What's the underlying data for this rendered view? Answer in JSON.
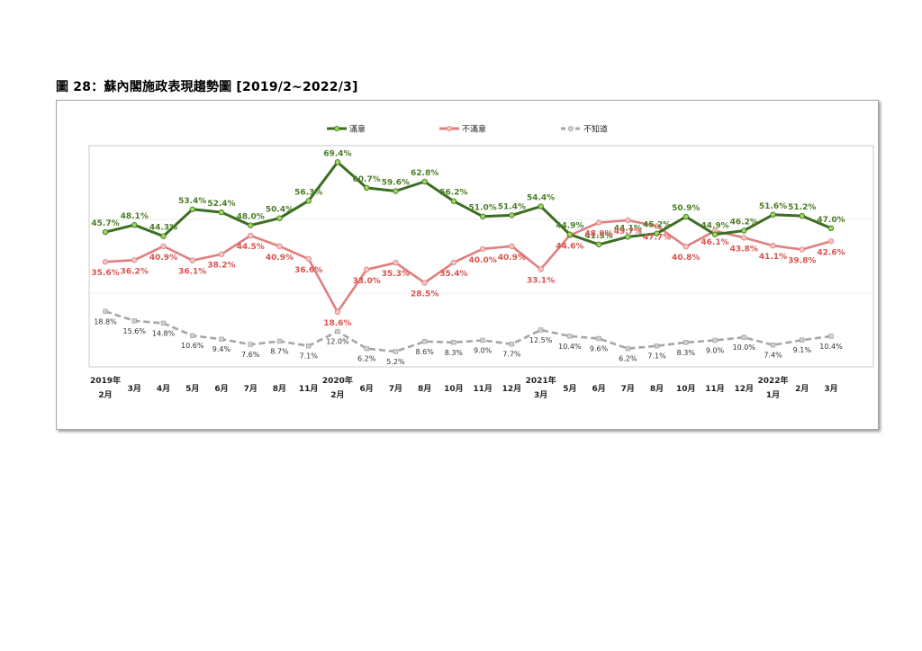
{
  "figure_title": "圖 28：蘇內閣施政表現趨勢圖  [2019/2~2022/3]",
  "chart_data": {
    "type": "line",
    "title": "圖 28：蘇內閣施政表現趨勢圖  [2019/2~2022/3]",
    "grid": false,
    "legend_position": "top",
    "categories": [
      [
        "2019年",
        "2月"
      ],
      [
        "",
        "3月"
      ],
      [
        "",
        "4月"
      ],
      [
        "",
        "5月"
      ],
      [
        "",
        "6月"
      ],
      [
        "",
        "7月"
      ],
      [
        "",
        "8月"
      ],
      [
        "",
        "11月"
      ],
      [
        "2020年",
        "2月"
      ],
      [
        "",
        "6月"
      ],
      [
        "",
        "7月"
      ],
      [
        "",
        "8月"
      ],
      [
        "",
        "10月"
      ],
      [
        "",
        "11月"
      ],
      [
        "",
        "12月"
      ],
      [
        "2021年",
        "3月"
      ],
      [
        "",
        "5月"
      ],
      [
        "",
        "6月"
      ],
      [
        "",
        "7月"
      ],
      [
        "",
        "8月"
      ],
      [
        "",
        "10月"
      ],
      [
        "",
        "11月"
      ],
      [
        "",
        "12月"
      ],
      [
        "2022年",
        "1月"
      ],
      [
        "",
        "2月"
      ],
      [
        "",
        "3月"
      ]
    ],
    "series": [
      {
        "name": "滿意",
        "color": "#3b6e22",
        "marker_color": "#9bd85a",
        "style": "solid",
        "values": [
          45.7,
          48.1,
          44.3,
          53.4,
          52.4,
          48.0,
          50.4,
          56.3,
          69.4,
          60.7,
          59.6,
          62.8,
          56.2,
          51.0,
          51.4,
          54.4,
          44.9,
          41.5,
          44.1,
          45.2,
          50.9,
          44.9,
          46.2,
          51.6,
          51.2,
          47.0
        ],
        "labels": [
          "45.7%",
          "48.1%",
          "44.3%",
          "53.4%",
          "52.4%",
          "48.0%",
          "50.4%",
          "56.3%",
          "69.4%",
          "60.7%",
          "59.6%",
          "62.8%",
          "56.2%",
          "51.0%",
          "51.4%",
          "54.4%",
          "44.9%",
          "41.5%",
          "44.1%",
          "45.2%",
          "50.9%",
          "44.9%",
          "46.2%",
          "51.6%",
          "51.2%",
          "47.0%"
        ]
      },
      {
        "name": "不滿意",
        "color": "#e07f7f",
        "marker_color": "#f4c4c4",
        "style": "solid",
        "values": [
          35.6,
          36.2,
          40.9,
          36.1,
          38.2,
          44.5,
          40.9,
          36.6,
          18.6,
          33.0,
          35.3,
          28.5,
          35.4,
          40.0,
          40.9,
          33.1,
          44.6,
          48.9,
          49.7,
          47.7,
          40.8,
          46.1,
          43.8,
          41.1,
          39.8,
          42.6
        ],
        "labels": [
          "35.6%",
          "36.2%",
          "40.9%",
          "36.1%",
          "38.2%",
          "44.5%",
          "40.9%",
          "36.6%",
          "18.6%",
          "33.0%",
          "35.3%",
          "28.5%",
          "35.4%",
          "40.0%",
          "40.9%",
          "33.1%",
          "44.6%",
          "48.9%",
          "49.7%",
          "47.7%",
          "40.8%",
          "46.1%",
          "43.8%",
          "41.1%",
          "39.8%",
          "42.6%"
        ]
      },
      {
        "name": "不知道",
        "color": "#a6a6a6",
        "marker_color": "#d0d0d0",
        "style": "dashed",
        "values": [
          18.8,
          15.6,
          14.8,
          10.6,
          9.4,
          7.6,
          8.7,
          7.1,
          12.0,
          6.2,
          5.2,
          8.6,
          8.3,
          9.0,
          7.7,
          12.5,
          10.4,
          9.6,
          6.2,
          7.1,
          8.3,
          9.0,
          10.0,
          7.4,
          9.1,
          10.4
        ],
        "labels": [
          "18.8%",
          "15.6%",
          "14.8%",
          "10.6%",
          "9.4%",
          "7.6%",
          "8.7%",
          "7.1%",
          "12.0%",
          "6.2%",
          "5.2%",
          "8.6%",
          "8.3%",
          "9.0%",
          "7.7%",
          "12.5%",
          "10.4%",
          "9.6%",
          "6.2%",
          "7.1%",
          "8.3%",
          "9.0%",
          "10.0%",
          "7.4%",
          "9.1%",
          "10.4%"
        ]
      }
    ]
  }
}
